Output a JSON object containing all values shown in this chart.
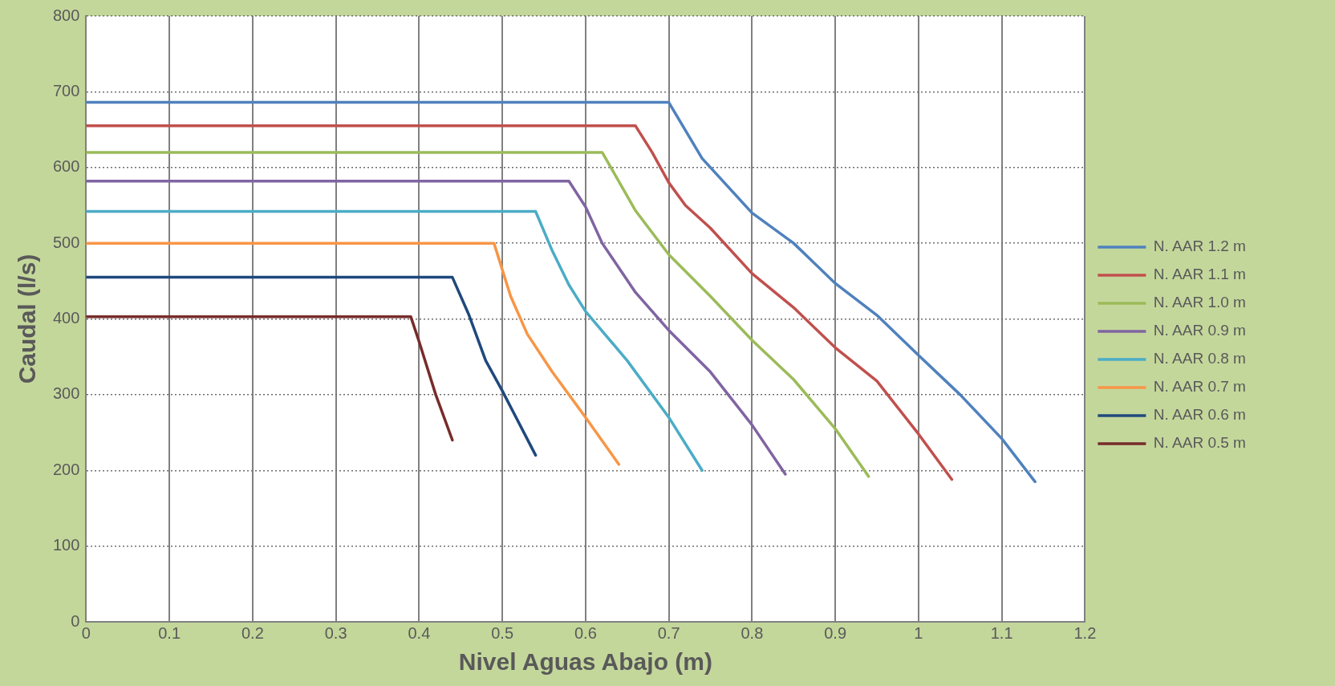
{
  "chart_data": {
    "type": "line",
    "xlabel": "Nivel Aguas Abajo (m)",
    "ylabel": "Caudal (l/s)",
    "xlim": [
      0,
      1.2
    ],
    "xticks": [
      0,
      0.1,
      0.2,
      0.3,
      0.4,
      0.5,
      0.6,
      0.7,
      0.8,
      0.9,
      1,
      1.1,
      1.2
    ],
    "ylim": [
      0,
      800
    ],
    "yticks": [
      0,
      100,
      200,
      300,
      400,
      500,
      600,
      700,
      800
    ],
    "grid": true,
    "legend": "right",
    "marker": "none",
    "line_style": "solid",
    "series": [
      {
        "name": "N. AAR 1.2 m",
        "color": "#4f81bd",
        "x": [
          0,
          0.7,
          0.74,
          0.8,
          0.85,
          0.9,
          0.95,
          1.0,
          1.05,
          1.1,
          1.14
        ],
        "values": [
          686,
          686,
          612,
          540,
          500,
          447,
          405,
          352,
          300,
          242,
          185
        ]
      },
      {
        "name": "N. AAR 1.1 m",
        "color": "#c0504d",
        "x": [
          0,
          0.66,
          0.68,
          0.7,
          0.72,
          0.75,
          0.8,
          0.85,
          0.9,
          0.95,
          1.0,
          1.04
        ],
        "values": [
          655,
          655,
          620,
          580,
          550,
          520,
          460,
          415,
          362,
          318,
          248,
          188
        ]
      },
      {
        "name": "N. AAR 1.0 m",
        "color": "#9bbb59",
        "x": [
          0,
          0.62,
          0.66,
          0.7,
          0.75,
          0.8,
          0.85,
          0.9,
          0.94
        ],
        "values": [
          620,
          620,
          543,
          485,
          430,
          372,
          320,
          255,
          192
        ]
      },
      {
        "name": "N. AAR 0.9 m",
        "color": "#8064a2",
        "x": [
          0,
          0.58,
          0.6,
          0.62,
          0.66,
          0.7,
          0.75,
          0.8,
          0.84
        ],
        "values": [
          582,
          582,
          548,
          500,
          435,
          385,
          330,
          260,
          195
        ]
      },
      {
        "name": "N. AAR 0.8 m",
        "color": "#4bacc6",
        "x": [
          0,
          0.54,
          0.56,
          0.58,
          0.6,
          0.65,
          0.7,
          0.74
        ],
        "values": [
          542,
          542,
          490,
          445,
          410,
          345,
          270,
          200
        ]
      },
      {
        "name": "N. AAR 0.7 m",
        "color": "#f79646",
        "x": [
          0,
          0.49,
          0.51,
          0.53,
          0.56,
          0.6,
          0.64
        ],
        "values": [
          500,
          500,
          430,
          380,
          330,
          270,
          208
        ]
      },
      {
        "name": "N. AAR 0.6 m",
        "color": "#1f497d",
        "x": [
          0,
          0.44,
          0.46,
          0.48,
          0.5,
          0.54
        ],
        "values": [
          455,
          455,
          405,
          345,
          305,
          220
        ]
      },
      {
        "name": "N. AAR 0.5 m",
        "color": "#772c2a",
        "x": [
          0,
          0.39,
          0.4,
          0.42,
          0.44
        ],
        "values": [
          403,
          403,
          370,
          300,
          240
        ]
      }
    ]
  }
}
